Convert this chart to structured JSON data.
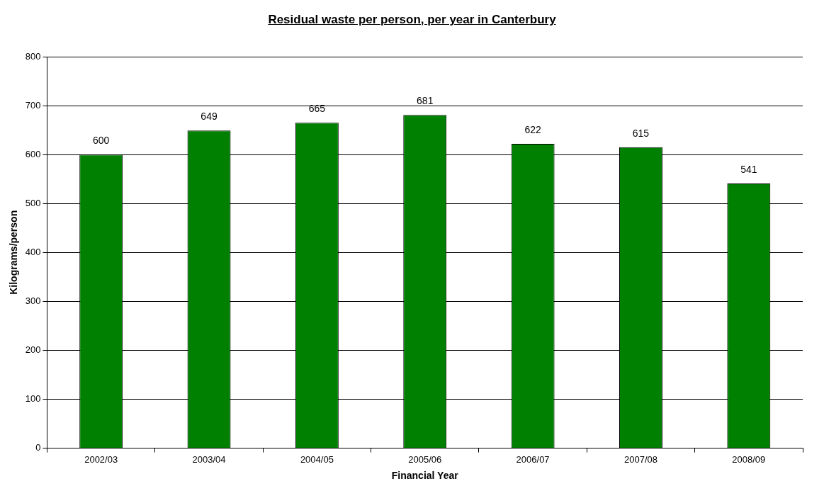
{
  "chart_data": {
    "type": "bar",
    "title": "Residual waste per person, per year in Canterbury",
    "xlabel": "Financial Year",
    "ylabel": "Kilograms/person",
    "categories": [
      "2002/03",
      "2003/04",
      "2004/05",
      "2005/06",
      "2006/07",
      "2007/08",
      "2008/09"
    ],
    "values": [
      600,
      649,
      665,
      681,
      622,
      615,
      541
    ],
    "color": "#008000",
    "ylim": [
      0,
      800
    ],
    "yticks": [
      0,
      100,
      200,
      300,
      400,
      500,
      600,
      700,
      800
    ],
    "grid": "y",
    "data_labels": true,
    "legend": false
  }
}
